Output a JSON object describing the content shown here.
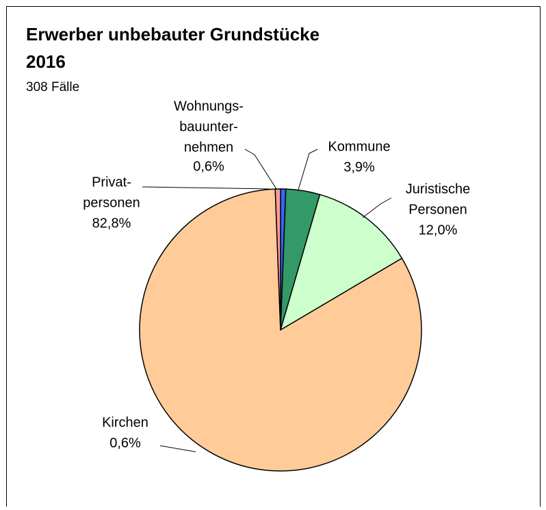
{
  "chart_data": {
    "type": "pie",
    "title": [
      "Erwerber unbebauter Grundstücke",
      "2016"
    ],
    "subtitle": "308 Fälle",
    "categories": [
      [
        "Wohnungs-",
        "bauunter-",
        "nehmen"
      ],
      [
        "Kommune"
      ],
      [
        "Juristische",
        "Personen"
      ],
      [
        "Privat-",
        "personen"
      ],
      [
        "Kirchen"
      ]
    ],
    "values": [
      0.6,
      3.9,
      12.0,
      82.8,
      0.6
    ],
    "value_labels": [
      "0,6%",
      "3,9%",
      "12,0%",
      "82,8%",
      "0,6%"
    ],
    "colors": [
      "#3366ff",
      "#339966",
      "#ccffcc",
      "#ffcc99",
      "#ff9999"
    ]
  }
}
